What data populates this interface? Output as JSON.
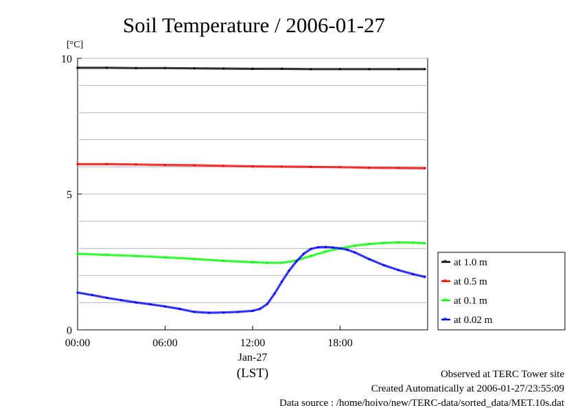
{
  "chart_data": {
    "type": "line",
    "title": "Soil Temperature / 2006-01-27",
    "ylabel": "[°C]",
    "xlabel": "(LST)",
    "date_label": "Jan-27",
    "xlim": [
      0,
      24
    ],
    "ylim": [
      0,
      10
    ],
    "x_ticks": [
      {
        "value": 0,
        "label": "00:00"
      },
      {
        "value": 6,
        "label": "06:00"
      },
      {
        "value": 12,
        "label": "12:00"
      },
      {
        "value": 18,
        "label": "18:00"
      }
    ],
    "y_ticks": [
      {
        "value": 0,
        "label": "0"
      },
      {
        "value": 5,
        "label": "5"
      },
      {
        "value": 10,
        "label": "10"
      }
    ],
    "y_gridlines": [
      1,
      2,
      3,
      4,
      5,
      6,
      7,
      8,
      9,
      10
    ],
    "grid": true,
    "legend_position": "right",
    "series": [
      {
        "name": "at 1.0 m",
        "color": "#000000",
        "x": [
          0,
          2,
          4,
          6,
          8,
          10,
          12,
          14,
          16,
          18,
          20,
          22,
          23.8
        ],
        "y": [
          9.65,
          9.65,
          9.64,
          9.64,
          9.63,
          9.62,
          9.61,
          9.61,
          9.6,
          9.6,
          9.6,
          9.6,
          9.6
        ]
      },
      {
        "name": "at 0.5 m",
        "color": "#ff0000",
        "x": [
          0,
          2,
          4,
          6,
          8,
          10,
          12,
          14,
          16,
          18,
          20,
          22,
          23.8
        ],
        "y": [
          6.1,
          6.1,
          6.09,
          6.07,
          6.06,
          6.04,
          6.02,
          6.01,
          6.0,
          5.99,
          5.97,
          5.96,
          5.95
        ]
      },
      {
        "name": "at 0.1 m",
        "color": "#00ff00",
        "x": [
          0,
          2,
          4,
          6,
          8,
          10,
          12,
          13,
          14,
          15,
          16,
          17,
          18,
          19,
          20,
          21,
          22,
          23,
          23.8
        ],
        "y": [
          2.8,
          2.76,
          2.72,
          2.67,
          2.61,
          2.54,
          2.49,
          2.47,
          2.47,
          2.55,
          2.72,
          2.88,
          3.0,
          3.1,
          3.16,
          3.2,
          3.22,
          3.21,
          3.19
        ]
      },
      {
        "name": "at 0.02 m",
        "color": "#0000ff",
        "x": [
          0,
          1,
          2,
          3,
          4,
          5,
          6,
          7,
          8,
          9,
          10,
          11,
          12,
          12.5,
          13,
          13.5,
          14,
          14.5,
          15,
          15.5,
          16,
          16.5,
          17,
          17.5,
          18,
          18.5,
          19,
          20,
          21,
          22,
          23,
          23.8
        ],
        "y": [
          1.37,
          1.28,
          1.18,
          1.09,
          1.01,
          0.94,
          0.86,
          0.77,
          0.66,
          0.63,
          0.64,
          0.66,
          0.7,
          0.77,
          0.95,
          1.33,
          1.77,
          2.18,
          2.52,
          2.8,
          2.98,
          3.04,
          3.05,
          3.03,
          3.0,
          2.95,
          2.85,
          2.6,
          2.38,
          2.2,
          2.05,
          1.95
        ]
      }
    ]
  },
  "footer": {
    "observed": "Observed at TERC Tower site",
    "created": "Created Automatically at 2006-01-27/23:55:09",
    "source": "Data source : /home/hoivo/new/TERC-data/sorted_data/MET.10s.dat"
  }
}
